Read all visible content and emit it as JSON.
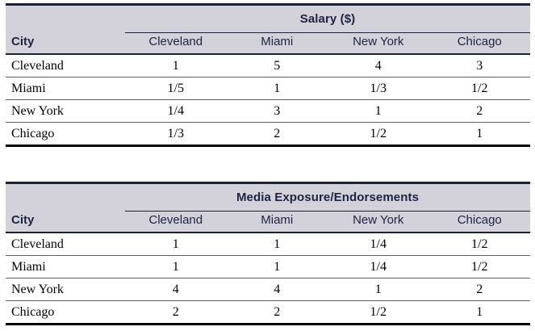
{
  "colors": {
    "band": "#d3d2db",
    "navy": "#1b2038",
    "headtext": "#1e2342"
  },
  "tables": [
    {
      "title": "Salary ($)",
      "corner_header": "City",
      "columns": [
        "Cleveland",
        "Miami",
        "New York",
        "Chicago"
      ],
      "rows": [
        {
          "label": "Cleveland",
          "values": [
            "1",
            "5",
            "4",
            "3"
          ]
        },
        {
          "label": "Miami",
          "values": [
            "1/5",
            "1",
            "1/3",
            "1/2"
          ]
        },
        {
          "label": "New York",
          "values": [
            "1/4",
            "3",
            "1",
            "2"
          ]
        },
        {
          "label": "Chicago",
          "values": [
            "1/3",
            "2",
            "1/2",
            "1"
          ]
        }
      ]
    },
    {
      "title": "Media Exposure/Endorsements",
      "corner_header": "City",
      "columns": [
        "Cleveland",
        "Miami",
        "New York",
        "Chicago"
      ],
      "rows": [
        {
          "label": "Cleveland",
          "values": [
            "1",
            "1",
            "1/4",
            "1/2"
          ]
        },
        {
          "label": "Miami",
          "values": [
            "1",
            "1",
            "1/4",
            "1/2"
          ]
        },
        {
          "label": "New York",
          "values": [
            "4",
            "4",
            "1",
            "2"
          ]
        },
        {
          "label": "Chicago",
          "values": [
            "2",
            "2",
            "1/2",
            "1"
          ]
        }
      ]
    }
  ]
}
